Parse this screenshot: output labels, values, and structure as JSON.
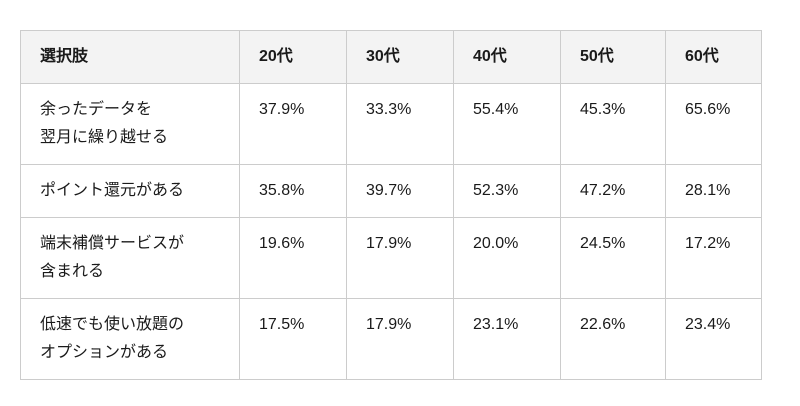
{
  "colors": {
    "page_bg": "#ffffff",
    "header_bg": "#f3f3f3",
    "border": "#cccccc",
    "text": "#1a1a1a"
  },
  "chart_data": {
    "type": "table",
    "columns": [
      "選択肢",
      "20代",
      "30代",
      "40代",
      "50代",
      "60代"
    ],
    "categories": [
      "20代",
      "30代",
      "40代",
      "50代",
      "60代"
    ],
    "rows": [
      {
        "label": "余ったデータを翌月に繰り越せる",
        "label_lines": [
          "余ったデータを",
          "翌月に繰り越せる"
        ],
        "values": [
          "37.9%",
          "33.3%",
          "55.4%",
          "45.3%",
          "65.6%"
        ],
        "values_numeric": [
          37.9,
          33.3,
          55.4,
          45.3,
          65.6
        ]
      },
      {
        "label": "ポイント還元がある",
        "label_lines": [
          "ポイント還元がある"
        ],
        "values": [
          "35.8%",
          "39.7%",
          "52.3%",
          "47.2%",
          "28.1%"
        ],
        "values_numeric": [
          35.8,
          39.7,
          52.3,
          47.2,
          28.1
        ]
      },
      {
        "label": "端末補償サービスが含まれる",
        "label_lines": [
          "端末補償サービスが",
          "含まれる"
        ],
        "values": [
          "19.6%",
          "17.9%",
          "20.0%",
          "24.5%",
          "17.2%"
        ],
        "values_numeric": [
          19.6,
          17.9,
          20.0,
          24.5,
          17.2
        ]
      },
      {
        "label": "低速でも使い放題のオプションがある",
        "label_lines": [
          "低速でも使い放題の",
          "オプションがある"
        ],
        "values": [
          "17.5%",
          "17.9%",
          "23.1%",
          "22.6%",
          "23.4%"
        ],
        "values_numeric": [
          17.5,
          17.9,
          23.1,
          22.6,
          23.4
        ]
      }
    ]
  }
}
